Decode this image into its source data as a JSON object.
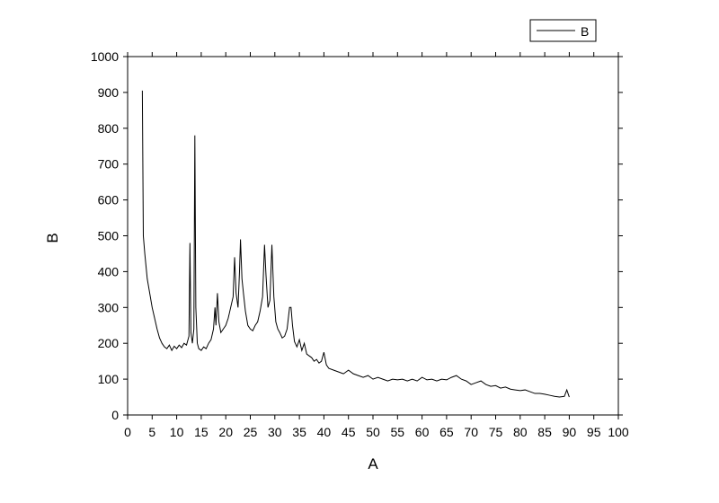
{
  "chart_data": {
    "type": "line",
    "x_label": "A",
    "y_label": "B",
    "x": [
      3,
      3.2,
      3.5,
      4,
      4.5,
      5,
      5.5,
      6,
      6.5,
      7,
      7.5,
      8,
      8.5,
      9,
      9.5,
      10,
      10.5,
      11,
      11.5,
      12,
      12.5,
      12.7,
      12.9,
      13.2,
      13.5,
      13.7,
      13.9,
      14.2,
      14.5,
      15,
      15.5,
      16,
      16.5,
      17,
      17.5,
      17.8,
      18,
      18.3,
      18.6,
      19,
      19.5,
      20,
      20.5,
      21,
      21.5,
      21.8,
      22.1,
      22.5,
      22.8,
      23,
      23.3,
      23.6,
      24,
      24.5,
      25,
      25.5,
      26,
      26.5,
      27,
      27.5,
      27.9,
      28.2,
      28.6,
      29,
      29.4,
      29.8,
      30.2,
      30.6,
      31,
      31.5,
      32,
      32.5,
      33,
      33.3,
      33.6,
      34,
      34.5,
      35,
      35.5,
      36,
      36.5,
      37,
      37.5,
      38,
      38.5,
      39,
      39.5,
      40,
      40.5,
      41,
      42,
      43,
      44,
      45,
      46,
      47,
      48,
      49,
      50,
      51,
      52,
      53,
      54,
      55,
      56,
      57,
      58,
      59,
      60,
      61,
      62,
      63,
      64,
      65,
      66,
      67,
      68,
      69,
      70,
      71,
      72,
      73,
      74,
      75,
      76,
      77,
      78,
      79,
      80,
      81,
      82,
      83,
      84,
      85,
      86,
      87,
      88,
      89,
      89.5,
      90
    ],
    "series": [
      {
        "name": "B",
        "color": "#000000",
        "values": [
          905,
          500,
          450,
          380,
          340,
          300,
          270,
          240,
          215,
          200,
          190,
          185,
          195,
          180,
          192,
          185,
          195,
          188,
          200,
          195,
          220,
          480,
          230,
          200,
          240,
          780,
          300,
          200,
          185,
          180,
          190,
          185,
          200,
          210,
          240,
          300,
          250,
          340,
          260,
          230,
          240,
          250,
          270,
          300,
          330,
          440,
          340,
          300,
          400,
          490,
          380,
          340,
          290,
          250,
          240,
          235,
          250,
          260,
          290,
          330,
          475,
          390,
          300,
          320,
          475,
          330,
          260,
          240,
          230,
          215,
          220,
          240,
          300,
          300,
          250,
          205,
          190,
          210,
          180,
          200,
          170,
          165,
          160,
          150,
          155,
          145,
          150,
          175,
          140,
          130,
          125,
          120,
          115,
          125,
          115,
          110,
          105,
          110,
          100,
          105,
          100,
          95,
          100,
          98,
          100,
          95,
          100,
          95,
          105,
          98,
          100,
          95,
          100,
          98,
          105,
          110,
          100,
          95,
          85,
          90,
          95,
          85,
          80,
          82,
          75,
          78,
          72,
          70,
          68,
          70,
          65,
          60,
          60,
          58,
          55,
          52,
          50,
          52,
          70,
          50
        ]
      }
    ],
    "xlim": [
      0,
      100
    ],
    "ylim": [
      0,
      1000
    ],
    "xticks": [
      0,
      5,
      10,
      15,
      20,
      25,
      30,
      35,
      40,
      45,
      50,
      55,
      60,
      65,
      70,
      75,
      80,
      85,
      90,
      95,
      100
    ],
    "yticks": [
      0,
      100,
      200,
      300,
      400,
      500,
      600,
      700,
      800,
      900,
      1000
    ],
    "legend": "top-right"
  }
}
